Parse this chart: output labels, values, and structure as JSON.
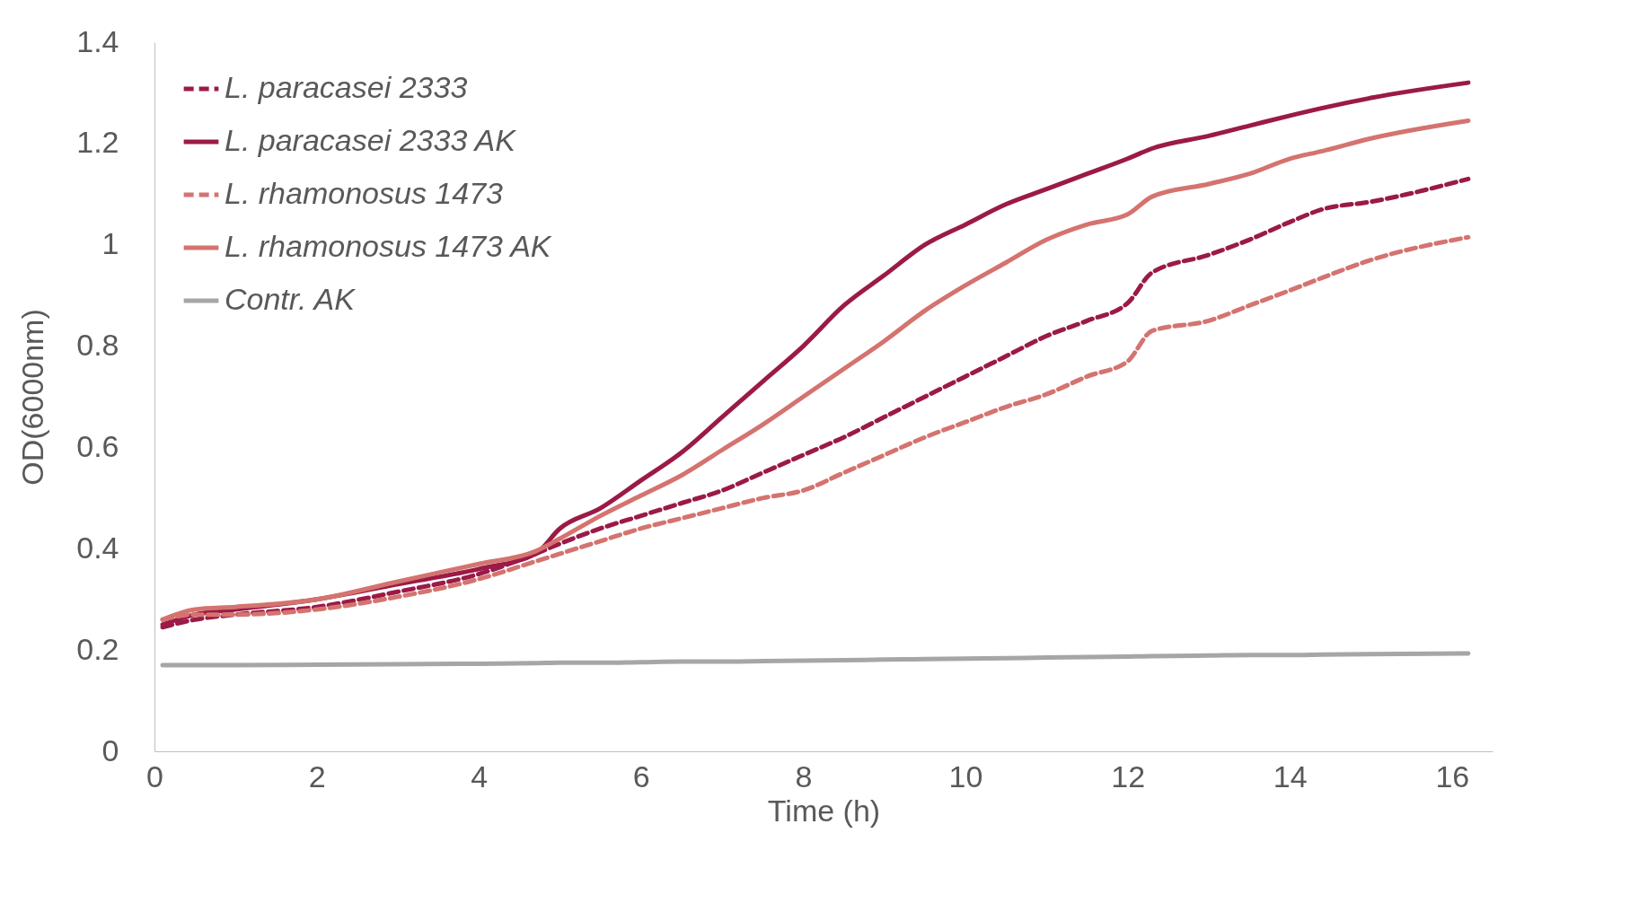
{
  "chart_data": {
    "type": "line",
    "xlabel": "Time (h)",
    "ylabel": "OD(6000nm)",
    "x": [
      0.1,
      0.5,
      1,
      2,
      3,
      4,
      4.7,
      5,
      5.5,
      6,
      6.5,
      7,
      7.5,
      8,
      8.5,
      9,
      9.5,
      10,
      10.5,
      11,
      11.5,
      12,
      12.3,
      13,
      13.5,
      14,
      14.4,
      15,
      16.2
    ],
    "xlim": [
      0,
      16.5
    ],
    "xticks": [
      0,
      2,
      4,
      6,
      8,
      10,
      12,
      14,
      16
    ],
    "ylim": [
      0,
      1.4
    ],
    "yticks": [
      0,
      0.2,
      0.4,
      0.6,
      0.8,
      1,
      1.2,
      1.4
    ],
    "grid": false,
    "legend": "top left",
    "series": [
      {
        "name": "L. paracasei 2333",
        "color": "#9b1a47",
        "line_style": "dashed",
        "values": [
          0.245,
          0.26,
          0.27,
          0.285,
          0.315,
          0.35,
          0.39,
          0.41,
          0.44,
          0.465,
          0.49,
          0.515,
          0.55,
          0.585,
          0.62,
          0.66,
          0.7,
          0.74,
          0.78,
          0.82,
          0.85,
          0.885,
          0.945,
          0.98,
          1.01,
          1.045,
          1.07,
          1.085,
          1.13
        ]
      },
      {
        "name": "L. paracasei 2333 AK",
        "color": "#9b1a47",
        "line_style": "solid",
        "values": [
          0.25,
          0.27,
          0.28,
          0.3,
          0.33,
          0.36,
          0.39,
          0.44,
          0.48,
          0.535,
          0.59,
          0.66,
          0.73,
          0.8,
          0.88,
          0.94,
          1.0,
          1.04,
          1.08,
          1.11,
          1.14,
          1.17,
          1.19,
          1.215,
          1.235,
          1.255,
          1.27,
          1.29,
          1.32
        ]
      },
      {
        "name": "L. rhamonosus 1473",
        "color": "#d4736f",
        "line_style": "dashed",
        "values": [
          0.26,
          0.27,
          0.27,
          0.28,
          0.305,
          0.34,
          0.375,
          0.39,
          0.415,
          0.44,
          0.46,
          0.48,
          0.5,
          0.515,
          0.55,
          0.585,
          0.62,
          0.65,
          0.68,
          0.705,
          0.74,
          0.77,
          0.83,
          0.85,
          0.88,
          0.91,
          0.935,
          0.97,
          1.015
        ]
      },
      {
        "name": "L. rhamonosus 1473 AK",
        "color": "#d4736f",
        "line_style": "solid",
        "values": [
          0.26,
          0.28,
          0.285,
          0.3,
          0.335,
          0.37,
          0.395,
          0.42,
          0.465,
          0.505,
          0.545,
          0.595,
          0.645,
          0.7,
          0.755,
          0.81,
          0.87,
          0.92,
          0.965,
          1.01,
          1.04,
          1.06,
          1.095,
          1.12,
          1.14,
          1.17,
          1.185,
          1.21,
          1.245
        ]
      },
      {
        "name": "Contr. AK",
        "color": "#a6a6a6",
        "line_style": "solid",
        "values": [
          0.17,
          0.17,
          0.17,
          0.171,
          0.172,
          0.173,
          0.174,
          0.175,
          0.175,
          0.176,
          0.177,
          0.177,
          0.178,
          0.179,
          0.18,
          0.181,
          0.182,
          0.183,
          0.184,
          0.185,
          0.186,
          0.187,
          0.188,
          0.189,
          0.19,
          0.19,
          0.191,
          0.192,
          0.193
        ]
      }
    ]
  }
}
